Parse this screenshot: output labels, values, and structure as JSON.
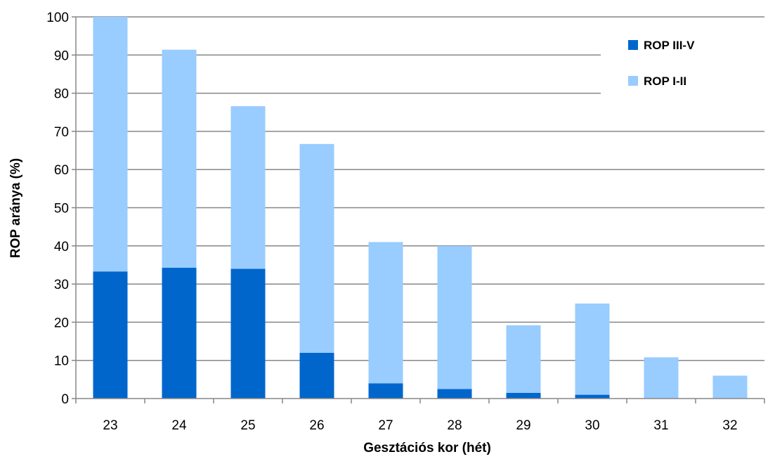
{
  "chart_data": {
    "type": "bar",
    "stacked": true,
    "xlabel": "Gesztációs kor (hét)",
    "ylabel": "ROP aránya (%)",
    "ylim": [
      0,
      100
    ],
    "yticks": [
      0,
      10,
      20,
      30,
      40,
      50,
      60,
      70,
      80,
      90,
      100
    ],
    "categories": [
      "23",
      "24",
      "25",
      "26",
      "27",
      "28",
      "29",
      "30",
      "31",
      "32"
    ],
    "series": [
      {
        "name": "ROP III-V",
        "color": "#0066CC",
        "values": [
          33.3,
          34.3,
          34.0,
          12.0,
          4.0,
          2.5,
          1.5,
          1.0,
          0,
          0
        ]
      },
      {
        "name": "ROP I-II",
        "color": "#99CCFF",
        "values": [
          66.7,
          57.1,
          42.6,
          54.7,
          37.0,
          37.5,
          17.7,
          23.9,
          10.8,
          6.0
        ]
      }
    ],
    "grid": true,
    "legend_position": "top-right"
  }
}
